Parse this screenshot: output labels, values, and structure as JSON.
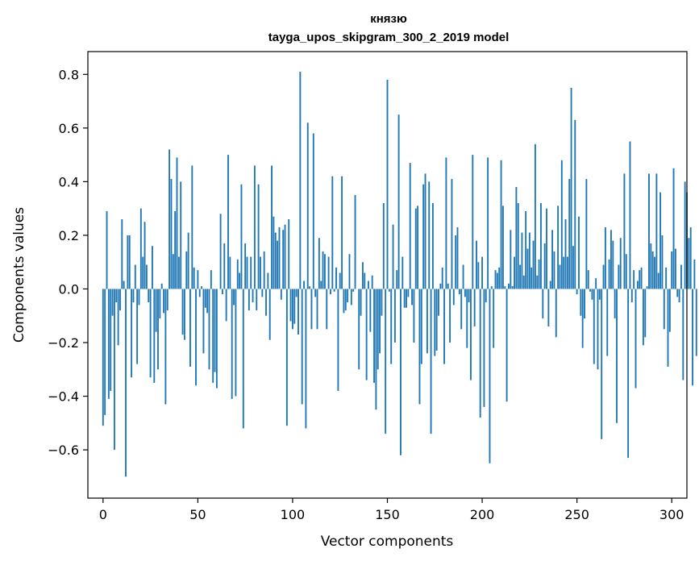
{
  "chart_data": {
    "type": "bar",
    "title": "князю",
    "subtitle": "tayga_upos_skipgram_300_2_2019 model",
    "xlabel": "Vector components",
    "ylabel": "Components values",
    "xlim": [
      -8,
      308
    ],
    "ylim": [
      -0.78,
      0.885
    ],
    "xticks": [
      0,
      50,
      100,
      150,
      200,
      250,
      300
    ],
    "yticks": [
      -0.6,
      -0.4,
      -0.2,
      0.0,
      0.2,
      0.4,
      0.6,
      0.8
    ],
    "ytick_labels": [
      "−0.6",
      "−0.4",
      "−0.2",
      "0.0",
      "0.2",
      "0.4",
      "0.6",
      "0.8"
    ],
    "bar_color": "#1f77b4",
    "grid": false,
    "values": [
      -0.51,
      -0.47,
      0.29,
      -0.41,
      -0.38,
      -0.1,
      -0.6,
      -0.05,
      -0.21,
      -0.08,
      0.26,
      0.03,
      -0.7,
      0.2,
      0.2,
      -0.33,
      -0.05,
      0.09,
      -0.28,
      -0.06,
      0.3,
      0.12,
      0.25,
      0.09,
      -0.05,
      -0.33,
      0.16,
      -0.35,
      -0.16,
      -0.3,
      -0.11,
      0.02,
      -0.09,
      -0.43,
      -0.08,
      0.52,
      0.41,
      0.13,
      0.29,
      0.49,
      0.12,
      0.4,
      -0.17,
      -0.19,
      0.14,
      0.21,
      -0.29,
      0.46,
      0.08,
      -0.36,
      0.07,
      -0.03,
      0.01,
      -0.24,
      -0.07,
      -0.09,
      -0.3,
      0.07,
      -0.35,
      -0.31,
      -0.37,
      0.0,
      0.28,
      -0.02,
      0.17,
      -0.12,
      0.5,
      0.12,
      -0.41,
      -0.06,
      -0.4,
      0.11,
      0.06,
      0.39,
      -0.52,
      0.17,
      0.12,
      -0.08,
      0.12,
      -0.05,
      0.46,
      -0.08,
      0.39,
      0.12,
      -0.03,
      0.14,
      -0.1,
      0.06,
      -0.19,
      0.46,
      0.27,
      0.21,
      0.18,
      0.23,
      -0.04,
      0.22,
      0.24,
      -0.51,
      0.26,
      -0.12,
      -0.15,
      -0.13,
      -0.03,
      -0.17,
      0.81,
      -0.43,
      0.03,
      -0.52,
      0.62,
      0.01,
      -0.15,
      0.58,
      -0.03,
      -0.15,
      0.19,
      0.03,
      0.14,
      0.13,
      -0.15,
      0.12,
      -0.02,
      0.42,
      -0.01,
      0.08,
      -0.38,
      0.06,
      0.42,
      -0.09,
      -0.08,
      -0.05,
      0.13,
      -0.06,
      -0.01,
      0.35,
      0.0,
      -0.3,
      -0.1,
      0.1,
      0.06,
      -0.34,
      0.03,
      -0.16,
      0.05,
      -0.35,
      -0.45,
      -0.3,
      -0.24,
      -0.1,
      0.32,
      -0.54,
      0.78,
      -0.01,
      -0.28,
      0.24,
      -0.2,
      0.07,
      0.65,
      -0.62,
      0.12,
      -0.07,
      -0.07,
      -0.03,
      0.47,
      -0.06,
      -0.2,
      0.3,
      0.31,
      -0.43,
      -0.28,
      0.39,
      0.43,
      -0.24,
      0.4,
      -0.54,
      0.32,
      -0.25,
      -0.23,
      -0.1,
      0.02,
      0.08,
      -0.28,
      0.49,
      0.02,
      -0.2,
      0.41,
      -0.06,
      0.2,
      0.23,
      -0.02,
      -0.15,
      0.09,
      -0.03,
      -0.22,
      -0.05,
      -0.34,
      0.5,
      -0.14,
      0.18,
      0.1,
      -0.48,
      0.12,
      -0.44,
      -0.05,
      0.49,
      -0.65,
      0.01,
      -0.22,
      0.07,
      0.06,
      0.08,
      0.48,
      0.31,
      0.01,
      -0.42,
      0.02,
      0.22,
      0.01,
      0.12,
      0.38,
      0.32,
      0.09,
      0.21,
      0.05,
      0.29,
      0.15,
      0.21,
      0.08,
      0.18,
      0.54,
      0.05,
      0.11,
      0.32,
      -0.11,
      0.17,
      0.3,
      -0.14,
      0.03,
      0.22,
      0.14,
      -0.18,
      0.31,
      0.09,
      0.48,
      0.12,
      0.26,
      0.12,
      0.41,
      0.75,
      0.16,
      0.63,
      -0.02,
      0.27,
      -0.1,
      -0.22,
      -0.11,
      0.41,
      0.07,
      -0.01,
      -0.04,
      -0.28,
      0.04,
      -0.3,
      -0.04,
      -0.56,
      0.09,
      0.23,
      -0.25,
      0.11,
      0.22,
      0.18,
      -0.11,
      -0.5,
      0.09,
      0.19,
      0.0,
      0.43,
      0.13,
      -0.63,
      0.55,
      -0.05,
      0.07,
      -0.37,
      0.03,
      0.07,
      0.08,
      -0.21,
      -0.18,
      0.01,
      0.43,
      0.17,
      0.14,
      0.12,
      0.43,
      0.06,
      0.36,
      0.2,
      -0.15,
      0.08,
      -0.29,
      -0.16,
      0.14,
      0.45,
      0.15,
      -0.03,
      -0.05,
      0.09,
      -0.34,
      0.4,
      0.36,
      0.19,
      0.23,
      -0.36,
      0.11,
      -0.25,
      0.0
    ]
  }
}
